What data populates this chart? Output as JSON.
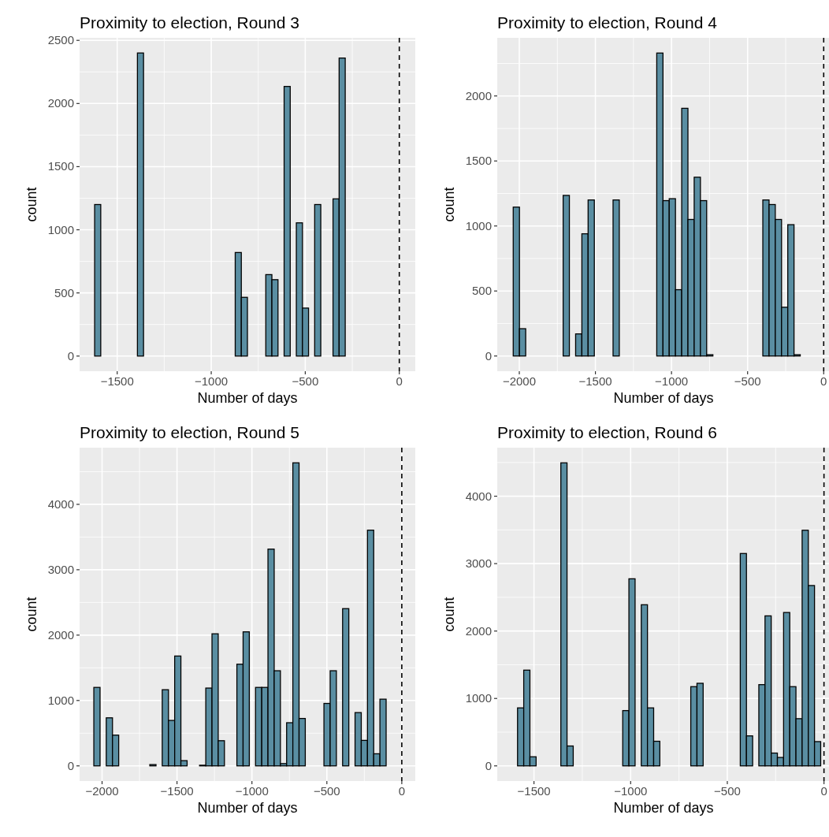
{
  "chart_data": [
    {
      "type": "histogram",
      "title": "Proximity to election, Round 3",
      "xlabel": "Number of days",
      "ylabel": "count",
      "color": "#5a8ea2",
      "grid": true,
      "bins": [
        -1620,
        -1587.5,
        -1555,
        -1522.5,
        -1490,
        -1457.5,
        -1425,
        -1392.5,
        -1360,
        -1327.5,
        -1295,
        -1262.5,
        -1230,
        -1197.5,
        -1165,
        -1132.5,
        -1100,
        -1067.5,
        -1035,
        -1002.5,
        -970,
        -937.5,
        -905,
        -872.5,
        -840,
        -807.5,
        -775,
        -742.5,
        -710,
        -677.5,
        -645,
        -612.5,
        -580,
        -547.5,
        -515,
        -482.5,
        -450,
        -417.5,
        -385,
        -352.5,
        -320,
        -287.5,
        -255,
        -222.5,
        -190,
        -157.5,
        -125,
        -92.5,
        -60,
        -27.5,
        5
      ],
      "values": [
        1200,
        0,
        0,
        0,
        0,
        0,
        0,
        2400,
        0,
        0,
        0,
        0,
        0,
        0,
        0,
        0,
        0,
        0,
        0,
        0,
        0,
        0,
        0,
        820,
        465,
        0,
        0,
        0,
        645,
        605,
        0,
        2135,
        0,
        1055,
        380,
        0,
        1200,
        0,
        0,
        1245,
        2360,
        0,
        0,
        0,
        0,
        0,
        0,
        0,
        0,
        0
      ],
      "xlim": [
        -1700,
        85
      ],
      "xticks": [
        -1500,
        -1000,
        -500,
        0
      ],
      "ylim": [
        -120,
        2520
      ],
      "yticks": [
        0,
        500,
        1000,
        1500,
        2000,
        2500
      ],
      "ref_lines": [
        {
          "axis": "x",
          "value": 0,
          "line_style": "dashed",
          "color": "#000000"
        }
      ]
    },
    {
      "type": "histogram",
      "title": "Proximity to election, Round 4",
      "xlabel": "Number of days",
      "ylabel": "count",
      "color": "#5a8ea2",
      "grid": true,
      "bins": [
        -2040,
        -1999,
        -1958,
        -1917,
        -1876,
        -1835,
        -1794,
        -1753,
        -1712,
        -1671,
        -1630,
        -1589,
        -1548,
        -1507,
        -1466,
        -1425,
        -1384,
        -1343,
        -1302,
        -1261,
        -1220,
        -1179,
        -1138,
        -1097,
        -1056,
        -1015,
        -974,
        -933,
        -892,
        -851,
        -810,
        -769,
        -728,
        -687,
        -646,
        -605,
        -564,
        -523,
        -482,
        -441,
        -400,
        -359,
        -318,
        -277,
        -236,
        -195,
        -154,
        -113,
        -72,
        -31,
        10
      ],
      "values": [
        1145,
        210,
        0,
        0,
        0,
        0,
        0,
        0,
        1235,
        0,
        170,
        940,
        1200,
        0,
        0,
        0,
        1200,
        0,
        0,
        0,
        0,
        0,
        0,
        2330,
        1195,
        1210,
        510,
        1905,
        1050,
        1375,
        1195,
        10,
        0,
        0,
        0,
        0,
        0,
        0,
        0,
        0,
        1200,
        1165,
        1050,
        375,
        1010,
        10,
        0,
        0,
        0,
        0
      ],
      "xlim": [
        -2145,
        40
      ],
      "xticks": [
        -2000,
        -1500,
        -1000,
        -500,
        0
      ],
      "ylim": [
        -117,
        2447
      ],
      "yticks": [
        0,
        500,
        1000,
        1500,
        2000
      ],
      "ref_lines": [
        {
          "axis": "x",
          "value": 0,
          "line_style": "dashed",
          "color": "#000000"
        }
      ]
    },
    {
      "type": "histogram",
      "title": "Proximity to election, Round 5",
      "xlabel": "Number of days",
      "ylabel": "count",
      "color": "#5a8ea2",
      "grid": true,
      "bins": [
        -2055,
        -2013.5,
        -1972,
        -1930.5,
        -1889,
        -1847.5,
        -1806,
        -1764.5,
        -1723,
        -1681.5,
        -1640,
        -1598.5,
        -1557,
        -1515.5,
        -1474,
        -1432.5,
        -1391,
        -1349.5,
        -1308,
        -1266.5,
        -1225,
        -1183.5,
        -1142,
        -1100.5,
        -1059,
        -1017.5,
        -976,
        -934.5,
        -893,
        -851.5,
        -810,
        -768.5,
        -727,
        -685.5,
        -644,
        -602.5,
        -561,
        -519.5,
        -478,
        -436.5,
        -395,
        -353.5,
        -312,
        -270.5,
        -229,
        -187.5,
        -146,
        -104.5,
        -63,
        -21.5,
        20
      ],
      "values": [
        1200,
        0,
        735,
        470,
        0,
        0,
        0,
        0,
        0,
        20,
        0,
        1165,
        695,
        1680,
        80,
        0,
        0,
        10,
        1190,
        2020,
        385,
        0,
        0,
        1555,
        2050,
        0,
        1200,
        1200,
        3315,
        1455,
        35,
        660,
        4635,
        725,
        0,
        0,
        0,
        955,
        1455,
        0,
        2405,
        0,
        815,
        390,
        3605,
        185,
        1020,
        0,
        0,
        0
      ],
      "xlim": [
        -2150,
        90
      ],
      "xticks": [
        -2000,
        -1500,
        -1000,
        -500,
        0
      ],
      "ylim": [
        -232,
        4867
      ],
      "yticks": [
        0,
        1000,
        2000,
        3000,
        4000
      ],
      "ref_lines": [
        {
          "axis": "x",
          "value": 0,
          "line_style": "dashed",
          "color": "#000000"
        }
      ]
    },
    {
      "type": "histogram",
      "title": "Proximity to election, Round 6",
      "xlabel": "Number of days",
      "ylabel": "count",
      "color": "#5a8ea2",
      "grid": true,
      "bins": [
        -1585,
        -1553,
        -1521,
        -1489,
        -1457,
        -1425,
        -1393,
        -1361,
        -1329,
        -1297,
        -1265,
        -1233,
        -1201,
        -1169,
        -1137,
        -1105,
        -1073,
        -1041,
        -1009,
        -977,
        -945,
        -913,
        -881,
        -849,
        -817,
        -785,
        -753,
        -721,
        -689,
        -657,
        -625,
        -593,
        -561,
        -529,
        -497,
        -465,
        -433,
        -401,
        -369,
        -337,
        -305,
        -273,
        -241,
        -209,
        -177,
        -145,
        -113,
        -81,
        -49,
        -17,
        15
      ],
      "values": [
        860,
        1420,
        135,
        0,
        0,
        0,
        0,
        4495,
        295,
        0,
        0,
        0,
        0,
        0,
        0,
        0,
        0,
        820,
        2775,
        0,
        2390,
        860,
        365,
        0,
        0,
        0,
        0,
        0,
        1175,
        1225,
        0,
        0,
        0,
        0,
        0,
        0,
        3150,
        445,
        0,
        1205,
        2225,
        190,
        125,
        2275,
        1175,
        700,
        3495,
        2675,
        360,
        0
      ],
      "xlim": [
        -1690,
        30
      ],
      "xticks": [
        -1500,
        -1000,
        -500,
        0
      ],
      "ylim": [
        -225,
        4720
      ],
      "yticks": [
        0,
        1000,
        2000,
        3000,
        4000
      ],
      "ref_lines": [
        {
          "axis": "x",
          "value": 0,
          "line_style": "dashed",
          "color": "#000000"
        }
      ]
    }
  ]
}
